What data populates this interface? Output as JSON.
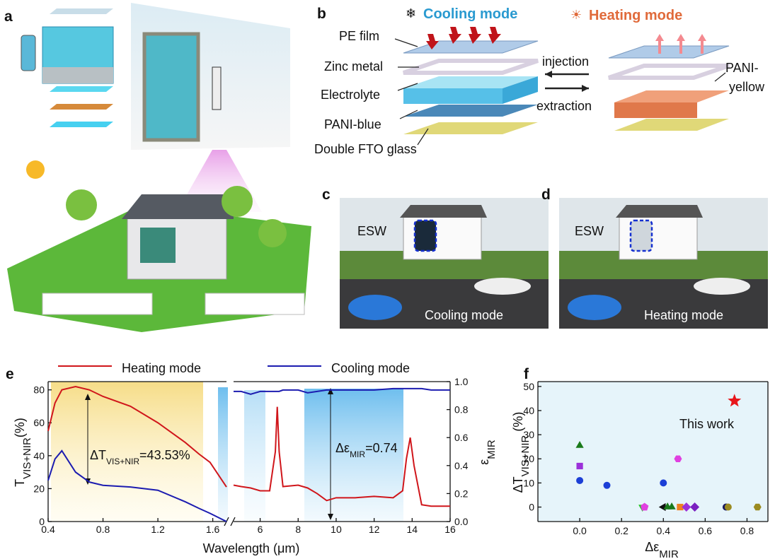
{
  "panels": {
    "a": {
      "label": "a"
    },
    "b": {
      "label": "b",
      "cooling": "Cooling mode",
      "heating": "Heating mode",
      "layers": [
        "PE film",
        "Zinc metal",
        "Electrolyte",
        "PANI-blue",
        "Double FTO glass"
      ],
      "injection": "injection",
      "extraction": "extraction",
      "pani_yellow": [
        "PANI-",
        "yellow"
      ]
    },
    "c": {
      "label": "c",
      "esw": "ESW",
      "mode": "Cooling mode"
    },
    "d": {
      "label": "d",
      "esw": "ESW",
      "mode": "Heating mode"
    }
  },
  "chart_data": [
    {
      "type": "line",
      "panel_label": "e",
      "x": [
        0.4,
        0.45,
        0.5,
        0.6,
        0.7,
        0.8,
        1.0,
        1.2,
        1.4,
        1.5,
        1.58,
        1.7
      ],
      "x2": [
        4.6,
        5,
        5.5,
        6,
        6.5,
        6.8,
        6.9,
        7.0,
        7.2,
        8,
        8.5,
        9,
        9.5,
        10,
        11,
        12,
        13,
        13.5,
        13.7,
        13.9,
        14.1,
        14.5,
        15,
        16
      ],
      "xlim": [
        0.4,
        1.7
      ],
      "xticks": [
        0.4,
        0.8,
        1.2,
        1.6
      ],
      "x2lim": [
        4.6,
        16
      ],
      "x2ticks": [
        6,
        8,
        10,
        12,
        14,
        16
      ],
      "ylim": [
        0,
        85
      ],
      "yticks": [
        0,
        20,
        40,
        60,
        80
      ],
      "y2lim": [
        0,
        1
      ],
      "y2ticks": [
        {
          "value": 0,
          "label": "0.0"
        },
        0.2,
        0.4,
        0.6,
        0.8,
        {
          "value": 1,
          "label": "1.0"
        }
      ],
      "xlabel": "Wavelength (μm)",
      "ylabel": {
        "main": "T",
        "sub": "VIS+NIR",
        "tail": "(%)"
      },
      "y2label": {
        "main": "ε",
        "sub": "MIR"
      },
      "series": [
        {
          "name": "Heating mode",
          "color": "#d0161b",
          "values": [
            55,
            72,
            80,
            82,
            80,
            76,
            70,
            60,
            48,
            41,
            36,
            21
          ],
          "values2": [
            0.26,
            0.25,
            0.24,
            0.22,
            0.22,
            0.5,
            0.82,
            0.5,
            0.25,
            0.26,
            0.24,
            0.2,
            0.15,
            0.17,
            0.17,
            0.18,
            0.17,
            0.22,
            0.45,
            0.6,
            0.4,
            0.12,
            0.11,
            0.11
          ]
        },
        {
          "name": "Cooling mode",
          "color": "#1c1cb0",
          "values": [
            25,
            38,
            43,
            30,
            24,
            22,
            21,
            19,
            12,
            8,
            5,
            0
          ],
          "values2": [
            0.93,
            0.93,
            0.91,
            0.93,
            0.93,
            0.93,
            0.93,
            0.93,
            0.94,
            0.94,
            0.92,
            0.93,
            0.94,
            0.94,
            0.94,
            0.94,
            0.95,
            0.95,
            0.95,
            0.95,
            0.95,
            0.95,
            0.94,
            0.94
          ]
        }
      ],
      "annotations": [
        {
          "main": "ΔT",
          "sub": "VIS+NIR",
          "tail": "=43.53%"
        },
        {
          "main": "Δε",
          "sub": "MIR",
          "tail": "=0.74"
        }
      ]
    },
    {
      "type": "scatter",
      "panel_label": "f",
      "xlim": [
        -0.2,
        0.9
      ],
      "xticks": [
        {
          "value": 0,
          "label": "0.0"
        },
        0.2,
        0.4,
        0.6,
        0.8
      ],
      "ylim": [
        -6,
        52
      ],
      "yticks": [
        0,
        10,
        20,
        30,
        40,
        50
      ],
      "xlabel": {
        "main": "Δε",
        "sub": "MIR"
      },
      "ylabel": {
        "main": "ΔT",
        "sub": "VIS+NIR",
        "tail": " (%)"
      },
      "annotation": "This work",
      "points": [
        {
          "x": 0.0,
          "y": 25.5,
          "color": "#1a7a1a",
          "marker": "triangle"
        },
        {
          "x": 0.0,
          "y": 17,
          "color": "#9b30d9",
          "marker": "square"
        },
        {
          "x": 0.0,
          "y": 11,
          "color": "#1c3fd6",
          "marker": "circle"
        },
        {
          "x": 0.13,
          "y": 9,
          "color": "#1c3fd6",
          "marker": "circle"
        },
        {
          "x": 0.4,
          "y": 10,
          "color": "#1c3fd6",
          "marker": "circle"
        },
        {
          "x": 0.47,
          "y": 20,
          "color": "#e040e0",
          "marker": "hexagon"
        },
        {
          "x": 0.74,
          "y": 44,
          "color": "#e8161b",
          "marker": "star"
        },
        {
          "x": 0.3,
          "y": 0,
          "color": "#22c022",
          "marker": "triangle-down"
        },
        {
          "x": 0.31,
          "y": 0,
          "color": "#e040e0",
          "marker": "pentagon"
        },
        {
          "x": 0.4,
          "y": 0,
          "color": "#111111",
          "marker": "triangle-left"
        },
        {
          "x": 0.42,
          "y": 0,
          "color": "#1a7a1a",
          "marker": "triangle"
        },
        {
          "x": 0.44,
          "y": 0,
          "color": "#1a7a1a",
          "marker": "triangle"
        },
        {
          "x": 0.48,
          "y": 0,
          "color": "#f08020",
          "marker": "square"
        },
        {
          "x": 0.51,
          "y": 0,
          "color": "#9b30d9",
          "marker": "diamond"
        },
        {
          "x": 0.55,
          "y": 0,
          "color": "#7a20c0",
          "marker": "diamond"
        },
        {
          "x": 0.7,
          "y": 0,
          "color": "#1a1a60",
          "marker": "circle"
        },
        {
          "x": 0.71,
          "y": 0,
          "color": "#9a8a20",
          "marker": "circle"
        },
        {
          "x": 0.85,
          "y": 0,
          "color": "#9a8a20",
          "marker": "hexagon"
        }
      ]
    }
  ]
}
